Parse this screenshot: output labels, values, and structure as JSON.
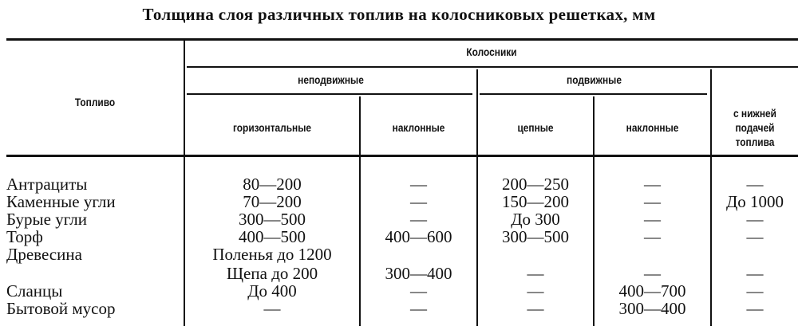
{
  "title": "Толщина слоя различных топлив на колосниковых решетках, мм",
  "headers": {
    "fuel": "Топливо",
    "grates": "Колосники",
    "fixed": "неподвижные",
    "movable": "подвижные",
    "horizontal": "горизонтальные",
    "inclined_fixed": "наклонные",
    "chain": "цепные",
    "inclined_movable": "наклонные",
    "bottom_feed": [
      "с нижней",
      "подачей",
      "топлива"
    ]
  },
  "rows": [
    [
      "Антрациты",
      "80—200",
      "—",
      "200—250",
      "—",
      "—"
    ],
    [
      "Каменные угли",
      "70—200",
      "—",
      "150—200",
      "—",
      "До 1000"
    ],
    [
      "Бурые угли",
      "300—500",
      "—",
      "До 300",
      "—",
      "—"
    ],
    [
      "Торф",
      "400—500",
      "400—600",
      "300—500",
      "—",
      "—"
    ],
    [
      "Древесина",
      "Поленья до 1200",
      "",
      "",
      "",
      ""
    ],
    [
      "",
      "Щепа до 200",
      "300—400",
      "—",
      "—",
      "—"
    ],
    [
      "Сланцы",
      "До 400",
      "—",
      "—",
      "400—700",
      "—"
    ],
    [
      "Бытовой мусор",
      "—",
      "—",
      "—",
      "300—400",
      "—"
    ]
  ]
}
